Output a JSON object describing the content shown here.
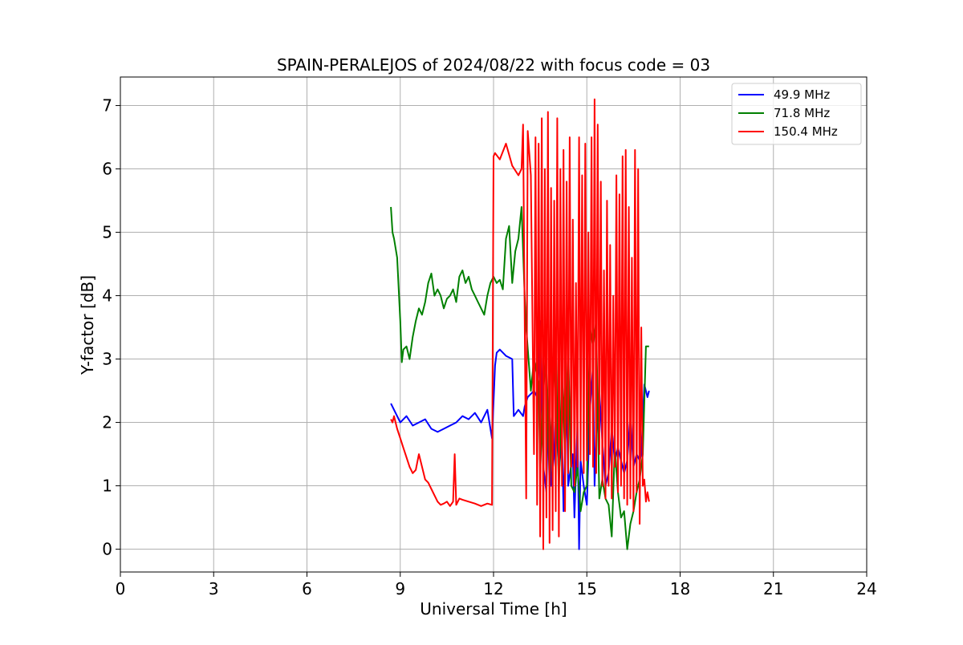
{
  "chart_data": {
    "type": "line",
    "title": "SPAIN-PERALEJOS of 2024/08/22 with focus code = 03",
    "xlabel": "Universal Time [h]",
    "ylabel": "Y-factor [dB]",
    "xlim": [
      0,
      24
    ],
    "ylim": [
      -0.36,
      7.45
    ],
    "xticks": [
      0,
      3,
      6,
      9,
      12,
      15,
      18,
      21,
      24
    ],
    "yticks": [
      0,
      1,
      2,
      3,
      4,
      5,
      6,
      7
    ],
    "grid": true,
    "legend_position": "top-right",
    "series": [
      {
        "name": "  49.9 MHz",
        "color": "#0000ff",
        "x": [
          8.7,
          8.8,
          9.0,
          9.2,
          9.4,
          9.6,
          9.8,
          10.0,
          10.2,
          10.4,
          10.6,
          10.8,
          11.0,
          11.2,
          11.4,
          11.6,
          11.8,
          11.95,
          12.05,
          12.1,
          12.2,
          12.4,
          12.6,
          12.65,
          12.8,
          12.95,
          13.0,
          13.1,
          13.3,
          13.4,
          13.5,
          13.6,
          13.7,
          13.75,
          13.8,
          13.85,
          13.95,
          14.0,
          14.1,
          14.2,
          14.25,
          14.35,
          14.4,
          14.55,
          14.6,
          14.7,
          14.75,
          14.8,
          14.9,
          15.0,
          15.1,
          15.2,
          15.25,
          15.3,
          15.4,
          15.5,
          15.6,
          15.7,
          15.8,
          15.9,
          16.0,
          16.2,
          16.3,
          16.4,
          16.5,
          16.6,
          16.7,
          16.75,
          16.85,
          16.95,
          17.0
        ],
        "values": [
          2.3,
          2.2,
          2.0,
          2.1,
          1.95,
          2.0,
          2.05,
          1.9,
          1.85,
          1.9,
          1.95,
          2.0,
          2.1,
          2.05,
          2.15,
          2.0,
          2.2,
          1.75,
          2.9,
          3.1,
          3.15,
          3.05,
          3.0,
          2.1,
          2.2,
          2.1,
          2.25,
          2.4,
          2.5,
          2.4,
          3.6,
          1.3,
          0.9,
          2.0,
          2.5,
          1.0,
          1.5,
          2.2,
          1.2,
          1.8,
          0.6,
          2.5,
          1.0,
          1.5,
          0.5,
          2.0,
          0.0,
          1.4,
          1.0,
          0.7,
          2.2,
          2.9,
          1.0,
          1.8,
          2.5,
          1.7,
          1.0,
          1.2,
          1.9,
          1.4,
          1.6,
          1.2,
          1.4,
          2.1,
          1.3,
          1.5,
          1.4,
          1.5,
          2.6,
          2.4,
          2.5
        ]
      },
      {
        "name": "  71.8 MHz",
        "color": "#008000",
        "x": [
          8.7,
          8.75,
          8.8,
          8.9,
          9.0,
          9.05,
          9.1,
          9.2,
          9.3,
          9.4,
          9.5,
          9.6,
          9.7,
          9.8,
          9.9,
          10.0,
          10.1,
          10.2,
          10.3,
          10.4,
          10.5,
          10.6,
          10.7,
          10.8,
          10.9,
          11.0,
          11.1,
          11.2,
          11.3,
          11.4,
          11.5,
          11.6,
          11.7,
          11.8,
          11.9,
          12.0,
          12.1,
          12.2,
          12.3,
          12.4,
          12.5,
          12.6,
          12.7,
          12.8,
          12.9,
          13.0,
          13.05,
          13.2,
          13.3,
          13.45,
          13.5,
          13.6,
          13.7,
          13.8,
          13.9,
          14.0,
          14.1,
          14.2,
          14.3,
          14.4,
          14.5,
          14.6,
          14.7,
          14.8,
          14.9,
          15.0,
          15.1,
          15.2,
          15.3,
          15.4,
          15.5,
          15.6,
          15.7,
          15.8,
          15.9,
          16.0,
          16.1,
          16.2,
          16.3,
          16.4,
          16.5,
          16.6,
          16.7,
          16.8,
          16.9,
          17.0
        ],
        "values": [
          5.4,
          5.0,
          4.9,
          4.6,
          3.6,
          2.95,
          3.15,
          3.2,
          3.0,
          3.35,
          3.6,
          3.8,
          3.7,
          3.9,
          4.2,
          4.35,
          4.0,
          4.1,
          4.0,
          3.8,
          3.95,
          4.0,
          4.1,
          3.9,
          4.3,
          4.4,
          4.2,
          4.3,
          4.1,
          4.0,
          3.9,
          3.8,
          3.7,
          4.0,
          4.2,
          4.3,
          4.2,
          4.25,
          4.1,
          4.9,
          5.1,
          4.2,
          4.7,
          4.9,
          5.4,
          4.0,
          3.5,
          2.5,
          3.0,
          2.6,
          1.2,
          2.5,
          3.1,
          1.0,
          2.3,
          3.3,
          0.9,
          2.8,
          1.5,
          3.2,
          1.0,
          0.9,
          1.3,
          0.6,
          0.9,
          1.0,
          3.5,
          3.2,
          3.6,
          0.8,
          1.1,
          0.8,
          0.7,
          0.2,
          1.6,
          0.9,
          0.5,
          0.6,
          0.0,
          0.4,
          0.6,
          0.9,
          1.1,
          1.5,
          3.2,
          3.2
        ]
      },
      {
        "name": " 150.4 MHz",
        "color": "#ff0000",
        "x": [
          8.7,
          8.75,
          8.8,
          8.9,
          9.0,
          9.1,
          9.2,
          9.3,
          9.4,
          9.5,
          9.6,
          9.7,
          9.8,
          9.9,
          10.0,
          10.1,
          10.2,
          10.3,
          10.4,
          10.5,
          10.6,
          10.7,
          10.75,
          10.8,
          10.9,
          11.0,
          11.2,
          11.4,
          11.6,
          11.8,
          11.95,
          12.0,
          12.05,
          12.2,
          12.4,
          12.6,
          12.8,
          12.9,
          12.95,
          13.05,
          13.1,
          13.2,
          13.3,
          13.35,
          13.4,
          13.45,
          13.5,
          13.55,
          13.6,
          13.65,
          13.7,
          13.75,
          13.8,
          13.85,
          13.9,
          13.95,
          14.0,
          14.05,
          14.1,
          14.15,
          14.2,
          14.25,
          14.3,
          14.35,
          14.4,
          14.45,
          14.5,
          14.55,
          14.6,
          14.65,
          14.7,
          14.75,
          14.8,
          14.85,
          14.9,
          14.95,
          15.0,
          15.05,
          15.1,
          15.15,
          15.2,
          15.25,
          15.3,
          15.35,
          15.4,
          15.45,
          15.5,
          15.55,
          15.6,
          15.65,
          15.7,
          15.75,
          15.8,
          15.85,
          15.9,
          15.95,
          16.0,
          16.05,
          16.1,
          16.15,
          16.2,
          16.25,
          16.3,
          16.35,
          16.4,
          16.45,
          16.5,
          16.55,
          16.6,
          16.65,
          16.7,
          16.75,
          16.8,
          16.85,
          16.9,
          16.95,
          17.0
        ],
        "values": [
          2.05,
          2.0,
          2.1,
          1.9,
          1.75,
          1.6,
          1.45,
          1.3,
          1.2,
          1.25,
          1.5,
          1.3,
          1.1,
          1.05,
          0.95,
          0.85,
          0.75,
          0.7,
          0.72,
          0.75,
          0.68,
          0.75,
          1.5,
          0.7,
          0.8,
          0.78,
          0.75,
          0.72,
          0.68,
          0.72,
          0.7,
          6.2,
          6.25,
          6.15,
          6.4,
          6.05,
          5.9,
          6.0,
          6.7,
          0.8,
          6.6,
          5.9,
          1.5,
          6.5,
          0.7,
          6.4,
          0.2,
          6.8,
          0.0,
          6.0,
          0.5,
          6.9,
          0.1,
          5.7,
          0.3,
          5.5,
          0.6,
          6.8,
          0.2,
          6.0,
          1.0,
          6.3,
          0.6,
          5.8,
          1.2,
          6.5,
          1.3,
          5.2,
          1.0,
          4.2,
          1.3,
          6.5,
          1.4,
          5.9,
          1.2,
          6.4,
          1.4,
          5.0,
          1.5,
          6.5,
          1.3,
          7.1,
          1.2,
          6.7,
          1.5,
          5.8,
          1.0,
          4.4,
          0.8,
          5.5,
          1.0,
          4.8,
          0.8,
          4.0,
          1.3,
          5.9,
          0.9,
          5.6,
          1.0,
          6.2,
          0.8,
          6.3,
          0.7,
          5.4,
          0.8,
          4.6,
          0.6,
          6.3,
          0.9,
          6.0,
          0.4,
          3.5,
          1.0,
          1.1,
          0.75,
          0.9,
          0.75
        ]
      }
    ]
  }
}
